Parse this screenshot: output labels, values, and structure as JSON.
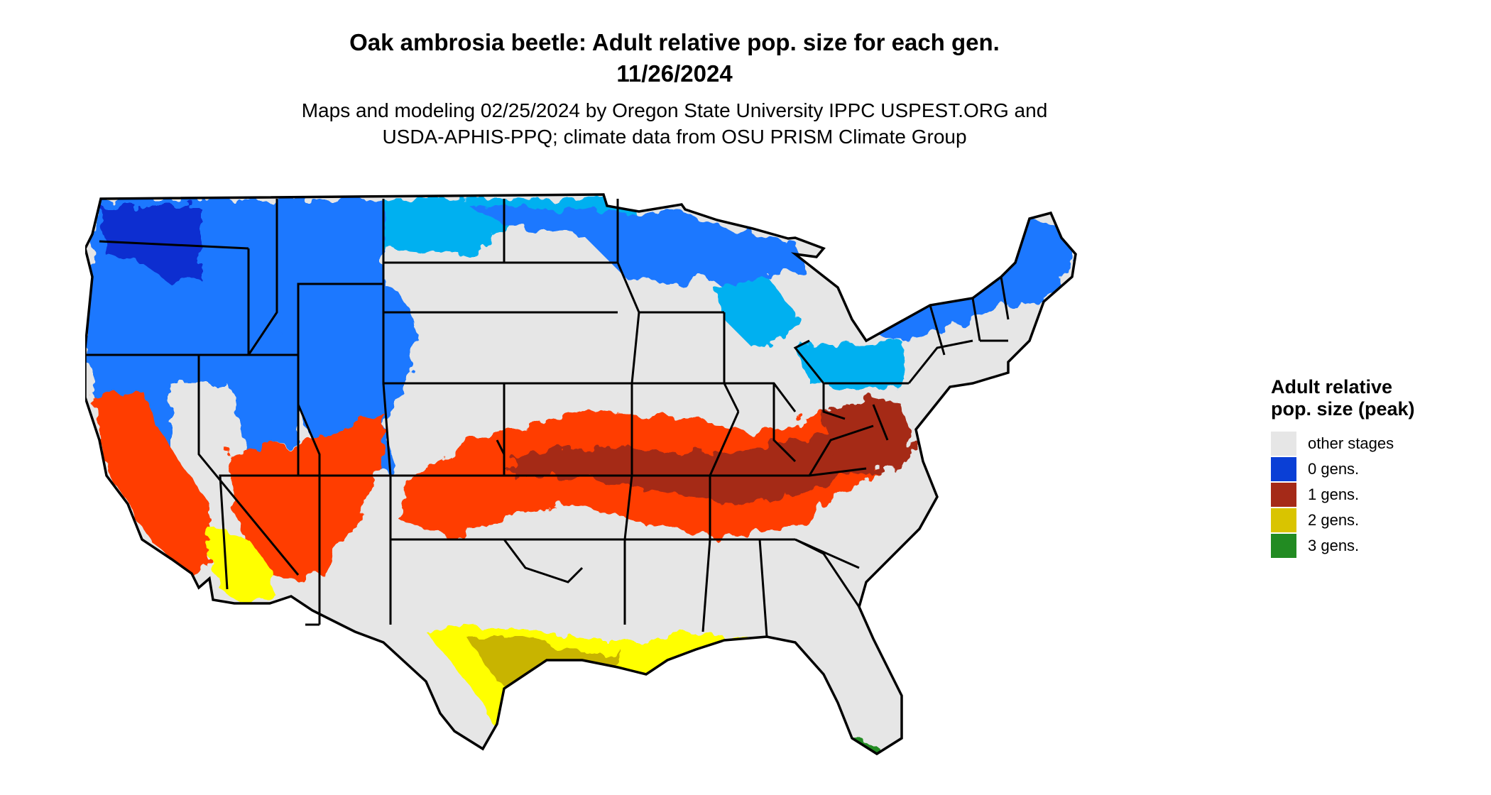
{
  "title": {
    "line1": "Oak ambrosia beetle: Adult relative pop. size for each gen.",
    "line2": "11/26/2024"
  },
  "subtitle": {
    "line1": "Maps and modeling 02/25/2024 by Oregon State University IPPC USPEST.ORG and",
    "line2": "USDA-APHIS-PPQ; climate data from OSU PRISM Climate Group"
  },
  "legend": {
    "title": "Adult relative pop. size (peak)",
    "items": [
      {
        "label": "other stages",
        "color": "#e6e6e6"
      },
      {
        "label": "0 gens.",
        "color": "#0a3fd6"
      },
      {
        "label": "1 gens.",
        "color": "#a52a18"
      },
      {
        "label": "2 gens.",
        "color": "#d9c400"
      },
      {
        "label": "3 gens.",
        "color": "#228b22"
      }
    ]
  },
  "map": {
    "colors": {
      "background_land": "#e6e6e6",
      "cold_light": "#00b0f0",
      "cold_mid": "#1e78ff",
      "cold_dark": "#0a2fd0",
      "one_gen_light": "#ff3c00",
      "one_gen_dark": "#a52a18",
      "two_gen_light": "#ffff00",
      "two_gen_dark": "#c8b400",
      "three_gen": "#228b22",
      "borders": "#000000"
    }
  }
}
